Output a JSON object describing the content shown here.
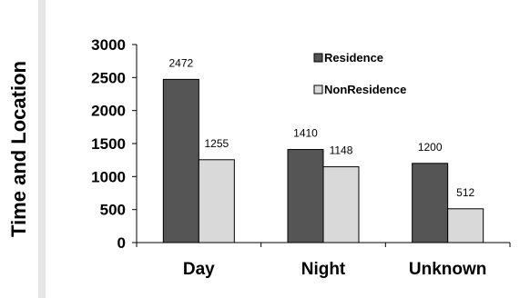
{
  "chart_data": {
    "type": "bar",
    "ylabel": "Time and Location",
    "xlabel": "",
    "categories": [
      "Day",
      "Night",
      "Unknown"
    ],
    "ylim": [
      0,
      3000
    ],
    "yticks": [
      0,
      500,
      1000,
      1500,
      2000,
      2500,
      3000
    ],
    "grid": false,
    "legend_position": "top-right",
    "series": [
      {
        "name": "Residence",
        "values": [
          2472,
          1410,
          1200
        ],
        "color": "#555555"
      },
      {
        "name": "NonResidence",
        "values": [
          1255,
          1148,
          512
        ],
        "color": "#d9d9d9"
      }
    ]
  }
}
